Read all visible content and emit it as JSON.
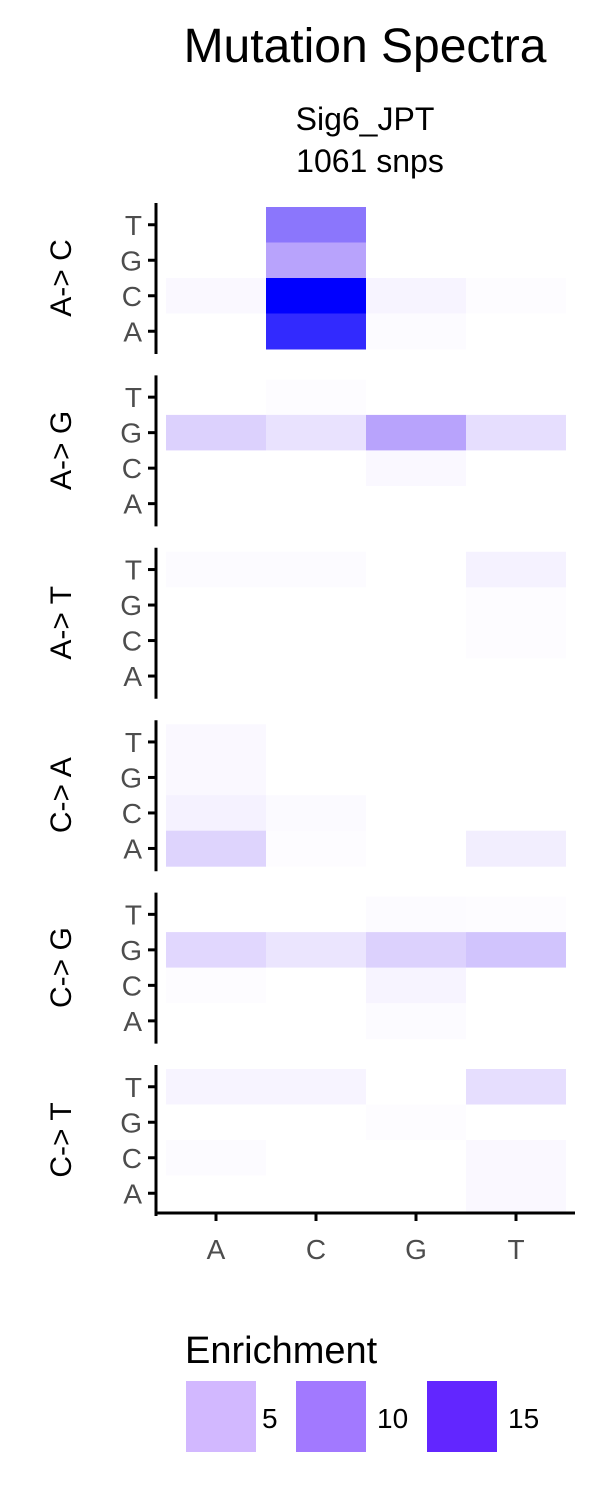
{
  "chart_data": {
    "type": "heatmap",
    "title": "Mutation Spectra",
    "subtitle_line1": "Sig6_JPT",
    "subtitle_line2": "1061 snps",
    "x_categories": [
      "A",
      "C",
      "G",
      "T"
    ],
    "y_categories": [
      "T",
      "G",
      "C",
      "A"
    ],
    "facets": [
      {
        "label": "A-> C",
        "values": [
          [
            0,
            10,
            0,
            0
          ],
          [
            0,
            7,
            0,
            0
          ],
          [
            0.5,
            17,
            0.8,
            0.2
          ],
          [
            0,
            14.5,
            0.3,
            0
          ]
        ]
      },
      {
        "label": "A-> G",
        "values": [
          [
            0,
            0.2,
            0,
            0
          ],
          [
            3.5,
            2.2,
            7,
            2.5
          ],
          [
            0,
            0,
            0.5,
            0
          ],
          [
            0,
            0,
            0,
            0
          ]
        ]
      },
      {
        "label": "A-> T",
        "values": [
          [
            0.3,
            0.3,
            0,
            1
          ],
          [
            0,
            0,
            0,
            0.2
          ],
          [
            0,
            0,
            0,
            0.2
          ],
          [
            0,
            0,
            0,
            0
          ]
        ]
      },
      {
        "label": "C-> A",
        "values": [
          [
            0.5,
            0,
            0,
            0
          ],
          [
            0.5,
            0,
            0,
            0
          ],
          [
            1,
            0.4,
            0,
            0
          ],
          [
            3.3,
            0.2,
            0,
            1.3
          ]
        ]
      },
      {
        "label": "C-> G",
        "values": [
          [
            0,
            0,
            0.3,
            0.2
          ],
          [
            3,
            2,
            3.5,
            4.5
          ],
          [
            0.2,
            0,
            0.8,
            0
          ],
          [
            0,
            0,
            0.3,
            0
          ]
        ]
      },
      {
        "label": "C-> T",
        "values": [
          [
            0.8,
            0.8,
            0,
            2.5
          ],
          [
            0,
            0,
            0.2,
            0
          ],
          [
            0.3,
            0,
            0,
            0.5
          ],
          [
            0,
            0,
            0,
            0.5
          ]
        ]
      }
    ],
    "legend": {
      "title": "Enrichment",
      "entries": [
        {
          "label": "5",
          "value": 5,
          "color": "#d2b8ff"
        },
        {
          "label": "10",
          "value": 10,
          "color": "#a279ff"
        },
        {
          "label": "15",
          "value": 15,
          "color": "#6226ff"
        }
      ]
    },
    "color_scale": {
      "low": "#ffffff",
      "mid": "#a98ffb",
      "high": "#0000ff",
      "max": 17
    }
  }
}
